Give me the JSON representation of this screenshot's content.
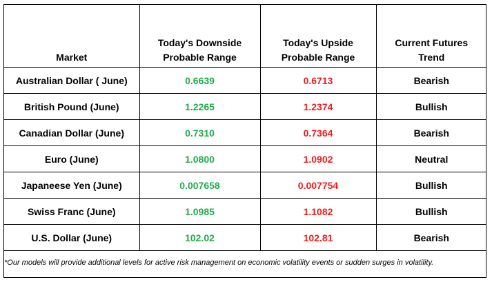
{
  "headers": {
    "market": "Market",
    "downside": [
      "Today's Downside",
      "Probable Range"
    ],
    "upside": [
      "Today's Upside",
      "Probable Range"
    ],
    "trend": [
      "Current Futures",
      "Trend"
    ]
  },
  "rows": [
    {
      "market": "Australian Dollar ( June)",
      "downside": "0.6639",
      "upside": "0.6713",
      "trend": "Bearish"
    },
    {
      "market": "British Pound (June)",
      "downside": "1.2265",
      "upside": "1.2374",
      "trend": "Bullish"
    },
    {
      "market": "Canadian Dollar (June)",
      "downside": "0.7310",
      "upside": "0.7364",
      "trend": "Bearish"
    },
    {
      "market": "Euro (June)",
      "downside": "1.0800",
      "upside": "1.0902",
      "trend": "Neutral"
    },
    {
      "market": "Japaneese Yen (June)",
      "downside": "0.007658",
      "upside": "0.007754",
      "trend": "Bullish"
    },
    {
      "market": "Swiss Franc (June)",
      "downside": "1.0985",
      "upside": "1.1082",
      "trend": "Bullish"
    },
    {
      "market": "U.S. Dollar (June)",
      "downside": "102.02",
      "upside": "102.81",
      "trend": "Bearish"
    }
  ],
  "footnote": "*Our models will provide additional levels for active risk management on economic volatility events or sudden surges in volatility.",
  "colors": {
    "downside": "#1faa4c",
    "upside": "#ee1c1c"
  }
}
